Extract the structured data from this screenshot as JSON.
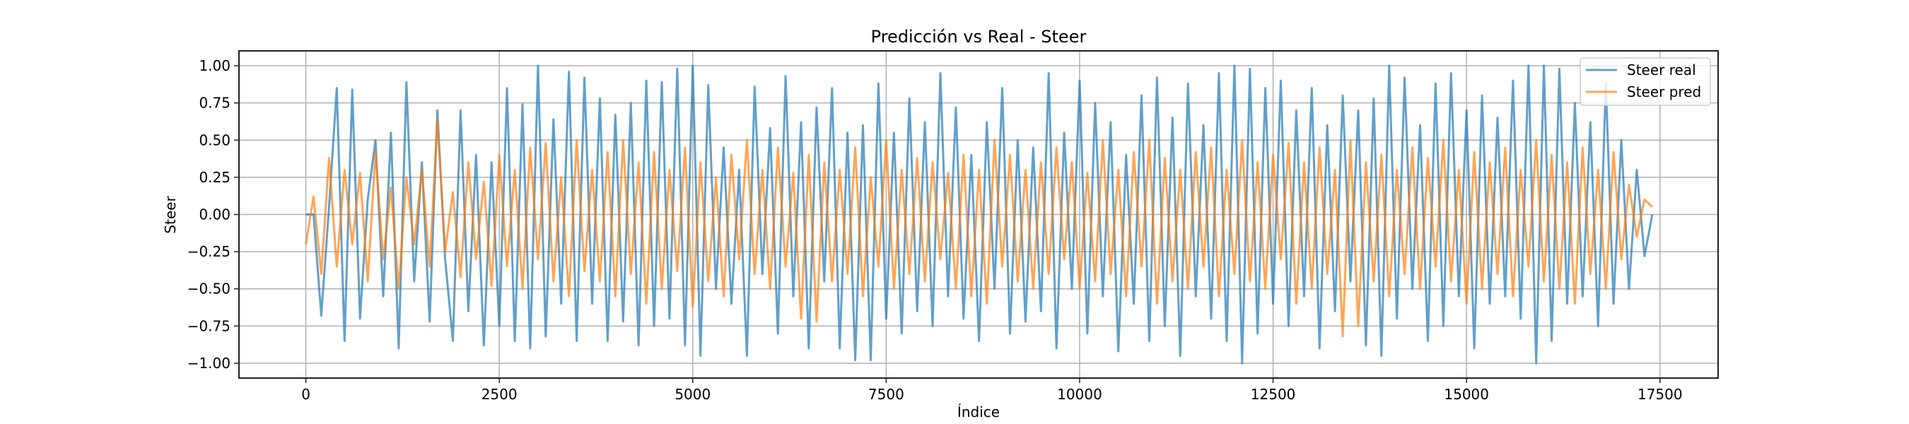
{
  "chart_data": {
    "type": "line",
    "title": "Predicción vs Real - Steer",
    "xlabel": "Índice",
    "ylabel": "Steer",
    "xlim": [
      -864,
      18251
    ],
    "ylim": [
      -1.1,
      1.1
    ],
    "grid": true,
    "legend_position": "top-right",
    "x_ticks": [
      0,
      2500,
      5000,
      7500,
      10000,
      12500,
      15000,
      17500
    ],
    "x_tick_labels": [
      "0",
      "2500",
      "5000",
      "7500",
      "10000",
      "12500",
      "15000",
      "17500"
    ],
    "y_ticks": [
      -1.0,
      -0.75,
      -0.5,
      -0.25,
      0.0,
      0.25,
      0.5,
      0.75,
      1.0
    ],
    "y_tick_labels": [
      "−1.00",
      "−0.75",
      "−0.50",
      "−0.25",
      "0.00",
      "0.25",
      "0.50",
      "0.75",
      "1.00"
    ],
    "x": [
      0,
      100,
      200,
      300,
      400,
      500,
      600,
      700,
      800,
      900,
      1000,
      1100,
      1200,
      1300,
      1400,
      1500,
      1600,
      1700,
      1800,
      1900,
      2000,
      2100,
      2200,
      2300,
      2400,
      2500,
      2600,
      2700,
      2800,
      2900,
      3000,
      3100,
      3200,
      3300,
      3400,
      3500,
      3600,
      3700,
      3800,
      3900,
      4000,
      4100,
      4200,
      4300,
      4400,
      4500,
      4600,
      4700,
      4800,
      4900,
      5000,
      5100,
      5200,
      5300,
      5400,
      5500,
      5600,
      5700,
      5800,
      5900,
      6000,
      6100,
      6200,
      6300,
      6400,
      6500,
      6600,
      6700,
      6800,
      6900,
      7000,
      7100,
      7200,
      7300,
      7400,
      7500,
      7600,
      7700,
      7800,
      7900,
      8000,
      8100,
      8200,
      8300,
      8400,
      8500,
      8600,
      8700,
      8800,
      8900,
      9000,
      9100,
      9200,
      9300,
      9400,
      9500,
      9600,
      9700,
      9800,
      9900,
      10000,
      10100,
      10200,
      10300,
      10400,
      10500,
      10600,
      10700,
      10800,
      10900,
      11000,
      11100,
      11200,
      11300,
      11400,
      11500,
      11600,
      11700,
      11800,
      11900,
      12000,
      12100,
      12200,
      12300,
      12400,
      12500,
      12600,
      12700,
      12800,
      12900,
      13000,
      13100,
      13200,
      13300,
      13400,
      13500,
      13600,
      13700,
      13800,
      13900,
      14000,
      14100,
      14200,
      14300,
      14400,
      14500,
      14600,
      14700,
      14800,
      14900,
      15000,
      15100,
      15200,
      15300,
      15400,
      15500,
      15600,
      15700,
      15800,
      15900,
      16000,
      16100,
      16200,
      16300,
      16400,
      16500,
      16600,
      16700,
      16800,
      16900,
      17000,
      17100,
      17200,
      17300,
      17400
    ],
    "series": [
      {
        "name": "Steer real",
        "color": "#1f77b4",
        "values": [
          0,
          0,
          -0.68,
          0.05,
          0.85,
          -0.85,
          0.84,
          -0.7,
          0.1,
          0.5,
          -0.55,
          0.55,
          -0.9,
          0.89,
          -0.45,
          0.35,
          -0.72,
          0.7,
          -0.3,
          -0.85,
          0.7,
          -0.65,
          0.4,
          -0.88,
          0.35,
          -0.75,
          0.85,
          -0.85,
          0.74,
          -0.9,
          1.0,
          -0.82,
          0.64,
          -0.6,
          0.96,
          -0.85,
          0.92,
          -0.6,
          0.78,
          -0.85,
          0.67,
          -0.72,
          0.75,
          -0.88,
          0.9,
          -0.75,
          0.89,
          -0.7,
          0.98,
          -0.88,
          1.0,
          -0.95,
          0.87,
          -0.5,
          0.45,
          -0.6,
          0.3,
          -0.95,
          0.86,
          -0.4,
          0.58,
          -0.8,
          0.93,
          -0.55,
          0.62,
          -0.9,
          0.72,
          -0.45,
          0.85,
          -0.9,
          0.55,
          -0.98,
          0.6,
          -0.98,
          0.88,
          -0.7,
          0.55,
          -0.8,
          0.78,
          -0.65,
          0.62,
          -0.75,
          0.95,
          -0.55,
          0.72,
          -0.7,
          0.4,
          -0.85,
          0.62,
          -0.5,
          0.85,
          -0.8,
          0.5,
          -0.72,
          0.45,
          -0.65,
          0.95,
          -0.9,
          0.55,
          -0.5,
          0.9,
          -0.8,
          0.75,
          -0.55,
          0.62,
          -0.92,
          0.4,
          -0.6,
          0.8,
          -0.85,
          0.92,
          -0.75,
          0.65,
          -0.95,
          0.88,
          -0.55,
          0.6,
          -0.7,
          0.95,
          -0.85,
          1.0,
          -1.0,
          0.98,
          -0.8,
          0.85,
          -0.6,
          0.9,
          -0.75,
          0.7,
          -0.55,
          0.85,
          -0.9,
          0.6,
          -0.65,
          0.8,
          -0.45,
          0.7,
          -0.88,
          0.78,
          -0.95,
          1.0,
          -0.7,
          0.92,
          -0.5,
          0.6,
          -0.85,
          0.88,
          -0.75,
          0.95,
          -0.55,
          0.7,
          -0.9,
          0.8,
          -0.6,
          0.65,
          -0.55,
          0.9,
          -0.7,
          1.0,
          -1.0,
          1.0,
          -0.85,
          0.98,
          -0.6,
          0.75,
          -0.55,
          0.62,
          -0.75,
          0.88,
          -0.6,
          0.5,
          -0.5,
          0.3,
          -0.28,
          0.0
        ]
      },
      {
        "name": "Steer pred",
        "color": "#ff7f0e",
        "values": [
          -0.2,
          0.12,
          -0.4,
          0.38,
          -0.35,
          0.3,
          -0.2,
          0.28,
          -0.45,
          0.42,
          -0.3,
          0.18,
          -0.5,
          0.25,
          -0.2,
          0.3,
          -0.35,
          0.64,
          -0.25,
          0.15,
          -0.42,
          0.35,
          -0.3,
          0.22,
          -0.48,
          0.4,
          -0.35,
          0.3,
          -0.5,
          0.45,
          -0.3,
          0.48,
          -0.45,
          0.25,
          -0.55,
          0.5,
          -0.38,
          0.3,
          -0.45,
          0.42,
          -0.55,
          0.5,
          -0.4,
          0.35,
          -0.6,
          0.42,
          -0.5,
          0.3,
          -0.38,
          0.45,
          -0.62,
          0.35,
          -0.45,
          0.25,
          -0.55,
          0.4,
          -0.3,
          0.5,
          -0.4,
          0.3,
          -0.5,
          0.45,
          -0.35,
          0.28,
          -0.7,
          0.4,
          -0.72,
          0.35,
          -0.45,
          0.3,
          -0.4,
          0.45,
          -0.55,
          0.25,
          -0.35,
          0.5,
          -0.5,
          0.3,
          -0.4,
          0.38,
          -0.45,
          0.35,
          -0.3,
          0.28,
          -0.5,
          0.4,
          -0.55,
          0.3,
          -0.6,
          0.5,
          -0.35,
          0.4,
          -0.45,
          0.3,
          -0.5,
          0.35,
          -0.4,
          0.45,
          -0.3,
          0.35,
          -0.5,
          0.28,
          -0.45,
          0.5,
          -0.4,
          0.3,
          -0.55,
          0.42,
          -0.35,
          0.5,
          -0.6,
          0.38,
          -0.45,
          0.3,
          -0.5,
          0.42,
          -0.35,
          0.45,
          -0.55,
          0.3,
          -0.4,
          0.5,
          -0.45,
          0.35,
          -0.5,
          0.4,
          -0.3,
          0.48,
          -0.6,
          0.35,
          -0.5,
          0.45,
          -0.4,
          0.3,
          -0.82,
          0.5,
          -0.75,
          0.35,
          -0.45,
          0.4,
          -0.55,
          0.3,
          -0.4,
          0.45,
          -0.5,
          0.38,
          -0.35,
          0.5,
          -0.45,
          0.3,
          -0.6,
          0.42,
          -0.5,
          0.35,
          -0.4,
          0.45,
          -0.55,
          0.3,
          -0.35,
          0.5,
          -0.45,
          0.4,
          -0.5,
          0.35,
          -0.6,
          0.45,
          -0.4,
          0.3,
          -0.5,
          0.42,
          -0.3,
          0.2,
          -0.15,
          0.1,
          0.05
        ]
      }
    ]
  }
}
